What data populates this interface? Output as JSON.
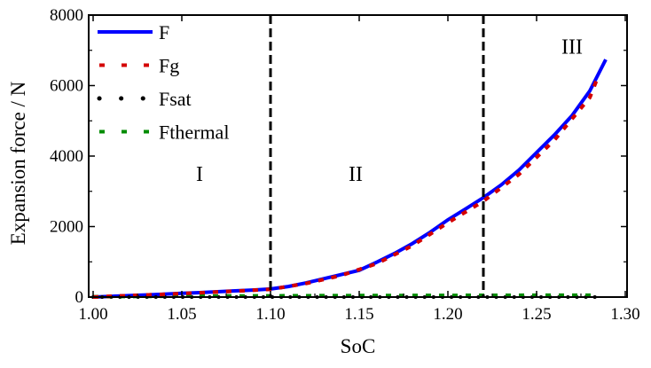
{
  "chart_data": {
    "type": "line",
    "title": "",
    "xlabel": "SoC",
    "ylabel": "Expansion force / N",
    "xlim": [
      1.0,
      1.3
    ],
    "ylim": [
      0,
      8000
    ],
    "xticks": [
      "1.00",
      "1.05",
      "1.10",
      "1.15",
      "1.20",
      "1.25",
      "1.30"
    ],
    "yticks": [
      "0",
      "2000",
      "4000",
      "6000",
      "8000"
    ],
    "grid": false,
    "legend_position": "top-left",
    "series": [
      {
        "name": "F",
        "style": "solid",
        "color": "#0000ff",
        "x": [
          1.0,
          1.01,
          1.02,
          1.03,
          1.04,
          1.05,
          1.06,
          1.07,
          1.08,
          1.09,
          1.1,
          1.11,
          1.12,
          1.13,
          1.14,
          1.15,
          1.16,
          1.17,
          1.18,
          1.19,
          1.2,
          1.21,
          1.22,
          1.23,
          1.24,
          1.25,
          1.26,
          1.27,
          1.28,
          1.289
        ],
        "y": [
          0,
          20,
          40,
          60,
          80,
          105,
          125,
          150,
          175,
          200,
          230,
          300,
          400,
          520,
          640,
          760,
          990,
          1240,
          1520,
          1840,
          2190,
          2500,
          2820,
          3180,
          3600,
          4100,
          4600,
          5150,
          5850,
          6740
        ]
      },
      {
        "name": "Fg",
        "style": "dash",
        "color": "#d40000",
        "x": [
          1.0,
          1.02,
          1.04,
          1.06,
          1.08,
          1.1,
          1.12,
          1.14,
          1.16,
          1.18,
          1.2,
          1.22,
          1.24,
          1.26,
          1.28,
          1.285
        ],
        "y": [
          0,
          40,
          78,
          120,
          168,
          220,
          385,
          615,
          950,
          1460,
          2110,
          2720,
          3480,
          4450,
          5660,
          6300
        ]
      },
      {
        "name": "Fsat",
        "style": "dot",
        "color": "#000000",
        "x": [
          1.0,
          1.1,
          1.2,
          1.285
        ],
        "y": [
          0,
          0,
          0,
          0
        ]
      },
      {
        "name": "Fthermal",
        "style": "dash",
        "color": "#008c00",
        "x": [
          1.0,
          1.05,
          1.1,
          1.15,
          1.2,
          1.25,
          1.285
        ],
        "y": [
          10,
          25,
          35,
          42,
          48,
          52,
          55
        ]
      }
    ],
    "vlines": [
      1.1,
      1.22
    ],
    "annotations": [
      {
        "text": "I",
        "x": 1.06,
        "y": 3300
      },
      {
        "text": "II",
        "x": 1.148,
        "y": 3300
      },
      {
        "text": "III",
        "x": 1.27,
        "y": 6900
      }
    ]
  }
}
